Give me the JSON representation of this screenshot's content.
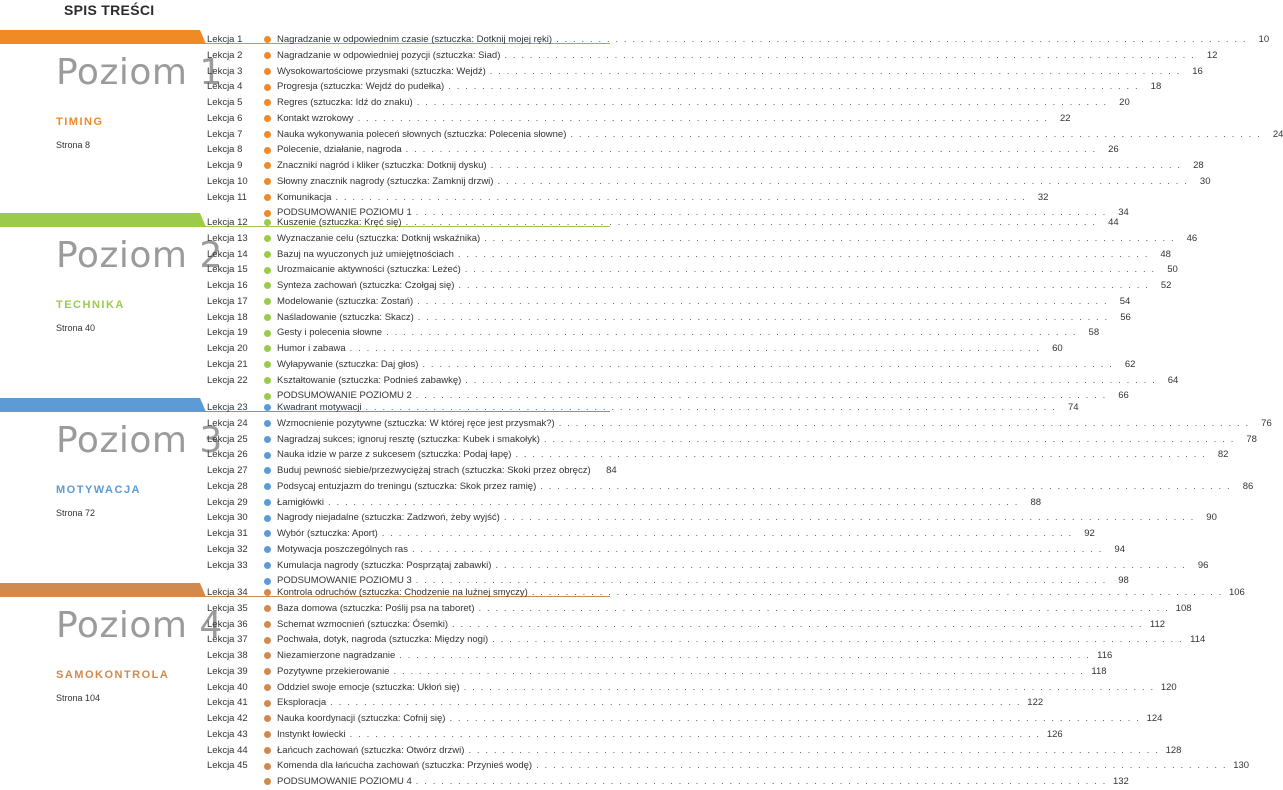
{
  "page": {
    "title": "SPIS TREŚCI"
  },
  "levels": [
    {
      "name": "Poziom 1",
      "subtitle": "TIMING",
      "page_ref": "Strona 8",
      "color": "#f08a24",
      "lessons": [
        {
          "no": "Lekcja 1",
          "text": "Nagradzanie w odpowiednim czasie (sztuczka: Dotknij mojej ręki)",
          "page": "10"
        },
        {
          "no": "Lekcja 2",
          "text": "Nagradzanie w odpowiedniej pozycji (sztuczka: Siad)",
          "page": "12"
        },
        {
          "no": "Lekcja 3",
          "text": "Wysokowartościowe przysmaki (sztuczka: Wejdź)",
          "page": "16"
        },
        {
          "no": "Lekcja 4",
          "text": "Progresja (sztuczka: Wejdź do pudełka)",
          "page": "18"
        },
        {
          "no": "Lekcja 5",
          "text": "Regres (sztuczka: Idź do znaku)",
          "page": "20"
        },
        {
          "no": "Lekcja 6",
          "text": "Kontakt wzrokowy",
          "page": "22"
        },
        {
          "no": "Lekcja 7",
          "text": "Nauka wykonywania poleceń słownych (sztuczka: Polecenia słowne)",
          "page": "24"
        },
        {
          "no": "Lekcja 8",
          "text": "Polecenie, działanie, nagroda",
          "page": "26"
        },
        {
          "no": "Lekcja 9",
          "text": "Znaczniki nagród i kliker (sztuczka: Dotknij dysku)",
          "page": "28"
        },
        {
          "no": "Lekcja 10",
          "text": "Słowny znacznik nagrody (sztuczka: Zamknij drzwi)",
          "page": "30"
        },
        {
          "no": "Lekcja 11",
          "text": "Komunikacja",
          "page": "32"
        },
        {
          "no": "",
          "text": "PODSUMOWANIE POZIOMU 1",
          "page": "34"
        }
      ]
    },
    {
      "name": "Poziom 2",
      "subtitle": "TECHNIKA",
      "page_ref": "Strona 40",
      "color": "#9ccb4a",
      "lessons": [
        {
          "no": "Lekcja 12",
          "text": "Kuszenie (sztuczka: Kręć się)",
          "page": "44"
        },
        {
          "no": "Lekcja 13",
          "text": "Wyznaczanie celu (sztuczka: Dotknij wskaźnika)",
          "page": "46"
        },
        {
          "no": "Lekcja 14",
          "text": "Bazuj na wyuczonych już umiejętnościach",
          "page": "48"
        },
        {
          "no": "Lekcja 15",
          "text": "Urozmaicanie aktywności (sztuczka: Leżeć)",
          "page": "50"
        },
        {
          "no": "Lekcja 16",
          "text": "Synteza zachowań (sztuczka: Czołgaj się)",
          "page": "52"
        },
        {
          "no": "Lekcja 17",
          "text": "Modelowanie (sztuczka: Zostań)",
          "page": "54"
        },
        {
          "no": "Lekcja 18",
          "text": "Naśladowanie (sztuczka: Skacz)",
          "page": "56"
        },
        {
          "no": "Lekcja 19",
          "text": "Gesty i polecenia słowne",
          "page": "58"
        },
        {
          "no": "Lekcja 20",
          "text": "Humor i zabawa",
          "page": "60"
        },
        {
          "no": "Lekcja 21",
          "text": "Wyłapywanie (sztuczka: Daj głos)",
          "page": "62"
        },
        {
          "no": "Lekcja 22",
          "text": "Kształtowanie (sztuczka: Podnieś zabawkę)",
          "page": "64"
        },
        {
          "no": "",
          "text": "PODSUMOWANIE POZIOMU 2",
          "page": "66"
        }
      ]
    },
    {
      "name": "Poziom 3",
      "subtitle": "MOTYWACJA",
      "page_ref": "Strona 72",
      "color": "#5c9bd6",
      "lessons": [
        {
          "no": "Lekcja 23",
          "text": "Kwadrant motywacji",
          "page": "74"
        },
        {
          "no": "Lekcja 24",
          "text": "Wzmocnienie pozytywne (sztuczka: W której ręce jest przysmak?)",
          "page": "76"
        },
        {
          "no": "Lekcja 25",
          "text": "Nagradzaj sukces; ignoruj resztę (sztuczka: Kubek i smakołyk)",
          "page": "78"
        },
        {
          "no": "Lekcja 26",
          "text": "Nauka idzie w parze z sukcesem (sztuczka: Podaj łapę)",
          "page": "82"
        },
        {
          "no": "Lekcja 27",
          "text": "Buduj pewność siebie/przezwyciężaj strach (sztuczka: Skoki przez obręcz)",
          "page": "84"
        },
        {
          "no": "Lekcja 28",
          "text": "Podsycaj entuzjazm do treningu (sztuczka: Skok przez ramię)",
          "page": "86"
        },
        {
          "no": "Lekcja 29",
          "text": "Łamigłówki",
          "page": "88"
        },
        {
          "no": "Lekcja 30",
          "text": "Nagrody niejadalne (sztuczka: Zadzwoń, żeby wyjść)",
          "page": "90"
        },
        {
          "no": "Lekcja 31",
          "text": "Wybór (sztuczka: Aport)",
          "page": "92"
        },
        {
          "no": "Lekcja 32",
          "text": "Motywacja poszczególnych ras",
          "page": "94"
        },
        {
          "no": "Lekcja 33",
          "text": "Kumulacja nagrody (sztuczka: Posprzątaj zabawki)",
          "page": "96"
        },
        {
          "no": "",
          "text": "PODSUMOWANIE POZIOMU 3",
          "page": "98"
        }
      ]
    },
    {
      "name": "Poziom 4",
      "subtitle": "SAMOKONTROLA",
      "page_ref": "Strona 104",
      "color": "#d08a4e",
      "lessons": [
        {
          "no": "Lekcja 34",
          "text": "Kontrola odruchów (sztuczka: Chodzenie na luźnej smyczy)",
          "page": "106"
        },
        {
          "no": "Lekcja 35",
          "text": "Baza domowa (sztuczka: Poślij psa na taboret)",
          "page": "108"
        },
        {
          "no": "Lekcja 36",
          "text": "Schemat wzmocnień (sztuczka: Ósemki)",
          "page": "112"
        },
        {
          "no": "Lekcja 37",
          "text": "Pochwała, dotyk, nagroda (sztuczka: Między nogi)",
          "page": "114"
        },
        {
          "no": "Lekcja 38",
          "text": "Niezamierzone nagradzanie",
          "page": "116"
        },
        {
          "no": "Lekcja 39",
          "text": "Pozytywne przekierowanie",
          "page": "118"
        },
        {
          "no": "Lekcja 40",
          "text": "Oddziel swoje emocje (sztuczka: Ukłoń się)",
          "page": "120"
        },
        {
          "no": "Lekcja 41",
          "text": "Eksploracja",
          "page": "122"
        },
        {
          "no": "Lekcja 42",
          "text": "Nauka koordynacji (sztuczka: Cofnij się)",
          "page": "124"
        },
        {
          "no": "Lekcja 43",
          "text": "Instynkt łowiecki",
          "page": "126"
        },
        {
          "no": "Lekcja 44",
          "text": "Łańcuch zachowań (sztuczka: Otwórz drzwi)",
          "page": "128"
        },
        {
          "no": "Lekcja 45",
          "text": "Komenda dla łańcucha zachowań (sztuczka: Przynieś wodę)",
          "page": "130"
        },
        {
          "no": "",
          "text": "PODSUMOWANIE POZIOMU 4",
          "page": "132"
        }
      ]
    }
  ]
}
